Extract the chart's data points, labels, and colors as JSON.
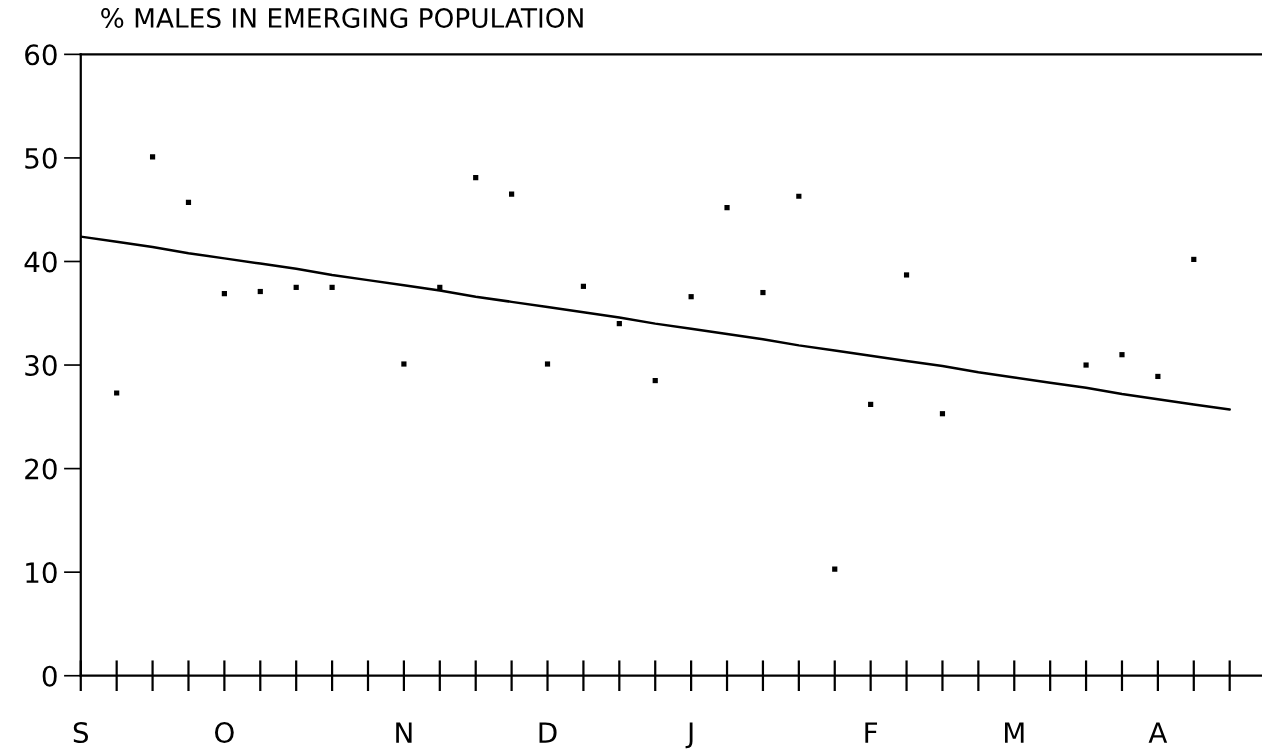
{
  "chart_data": {
    "type": "scatter",
    "title": "% MALES IN EMERGING POPULATION",
    "categories": [
      "S",
      null,
      null,
      null,
      "O",
      null,
      null,
      null,
      null,
      "N",
      null,
      null,
      null,
      "D",
      null,
      null,
      null,
      "J",
      null,
      null,
      null,
      null,
      "F",
      null,
      null,
      null,
      "M",
      null,
      null,
      null,
      "A",
      null,
      null
    ],
    "ylim": [
      0,
      60
    ],
    "yticks": [
      0,
      10,
      20,
      30,
      40,
      50,
      60
    ],
    "grid": false,
    "legend": false,
    "marker": "square",
    "series": [
      {
        "color": "#000000",
        "values": [
          null,
          27.3,
          50.1,
          45.7,
          36.9,
          37.1,
          37.5,
          37.5,
          null,
          30.1,
          37.5,
          48.1,
          46.5,
          30.1,
          37.6,
          34.0,
          28.5,
          36.6,
          45.2,
          37.0,
          46.3,
          10.3,
          26.2,
          38.7,
          25.3,
          null,
          null,
          null,
          30.0,
          31.0,
          28.9,
          40.2,
          null
        ]
      },
      {
        "type": "line",
        "color": "#000000",
        "marker": "none",
        "line_style": "solid",
        "values": [
          42.4,
          41.9,
          41.4,
          40.8,
          40.3,
          39.8,
          39.3,
          38.7,
          38.2,
          37.7,
          37.2,
          36.6,
          36.1,
          35.6,
          35.1,
          34.6,
          34.0,
          33.5,
          33.0,
          32.5,
          31.9,
          31.4,
          30.9,
          30.4,
          29.9,
          29.3,
          28.8,
          28.3,
          27.8,
          27.2,
          26.7,
          26.2,
          25.7
        ]
      }
    ]
  }
}
